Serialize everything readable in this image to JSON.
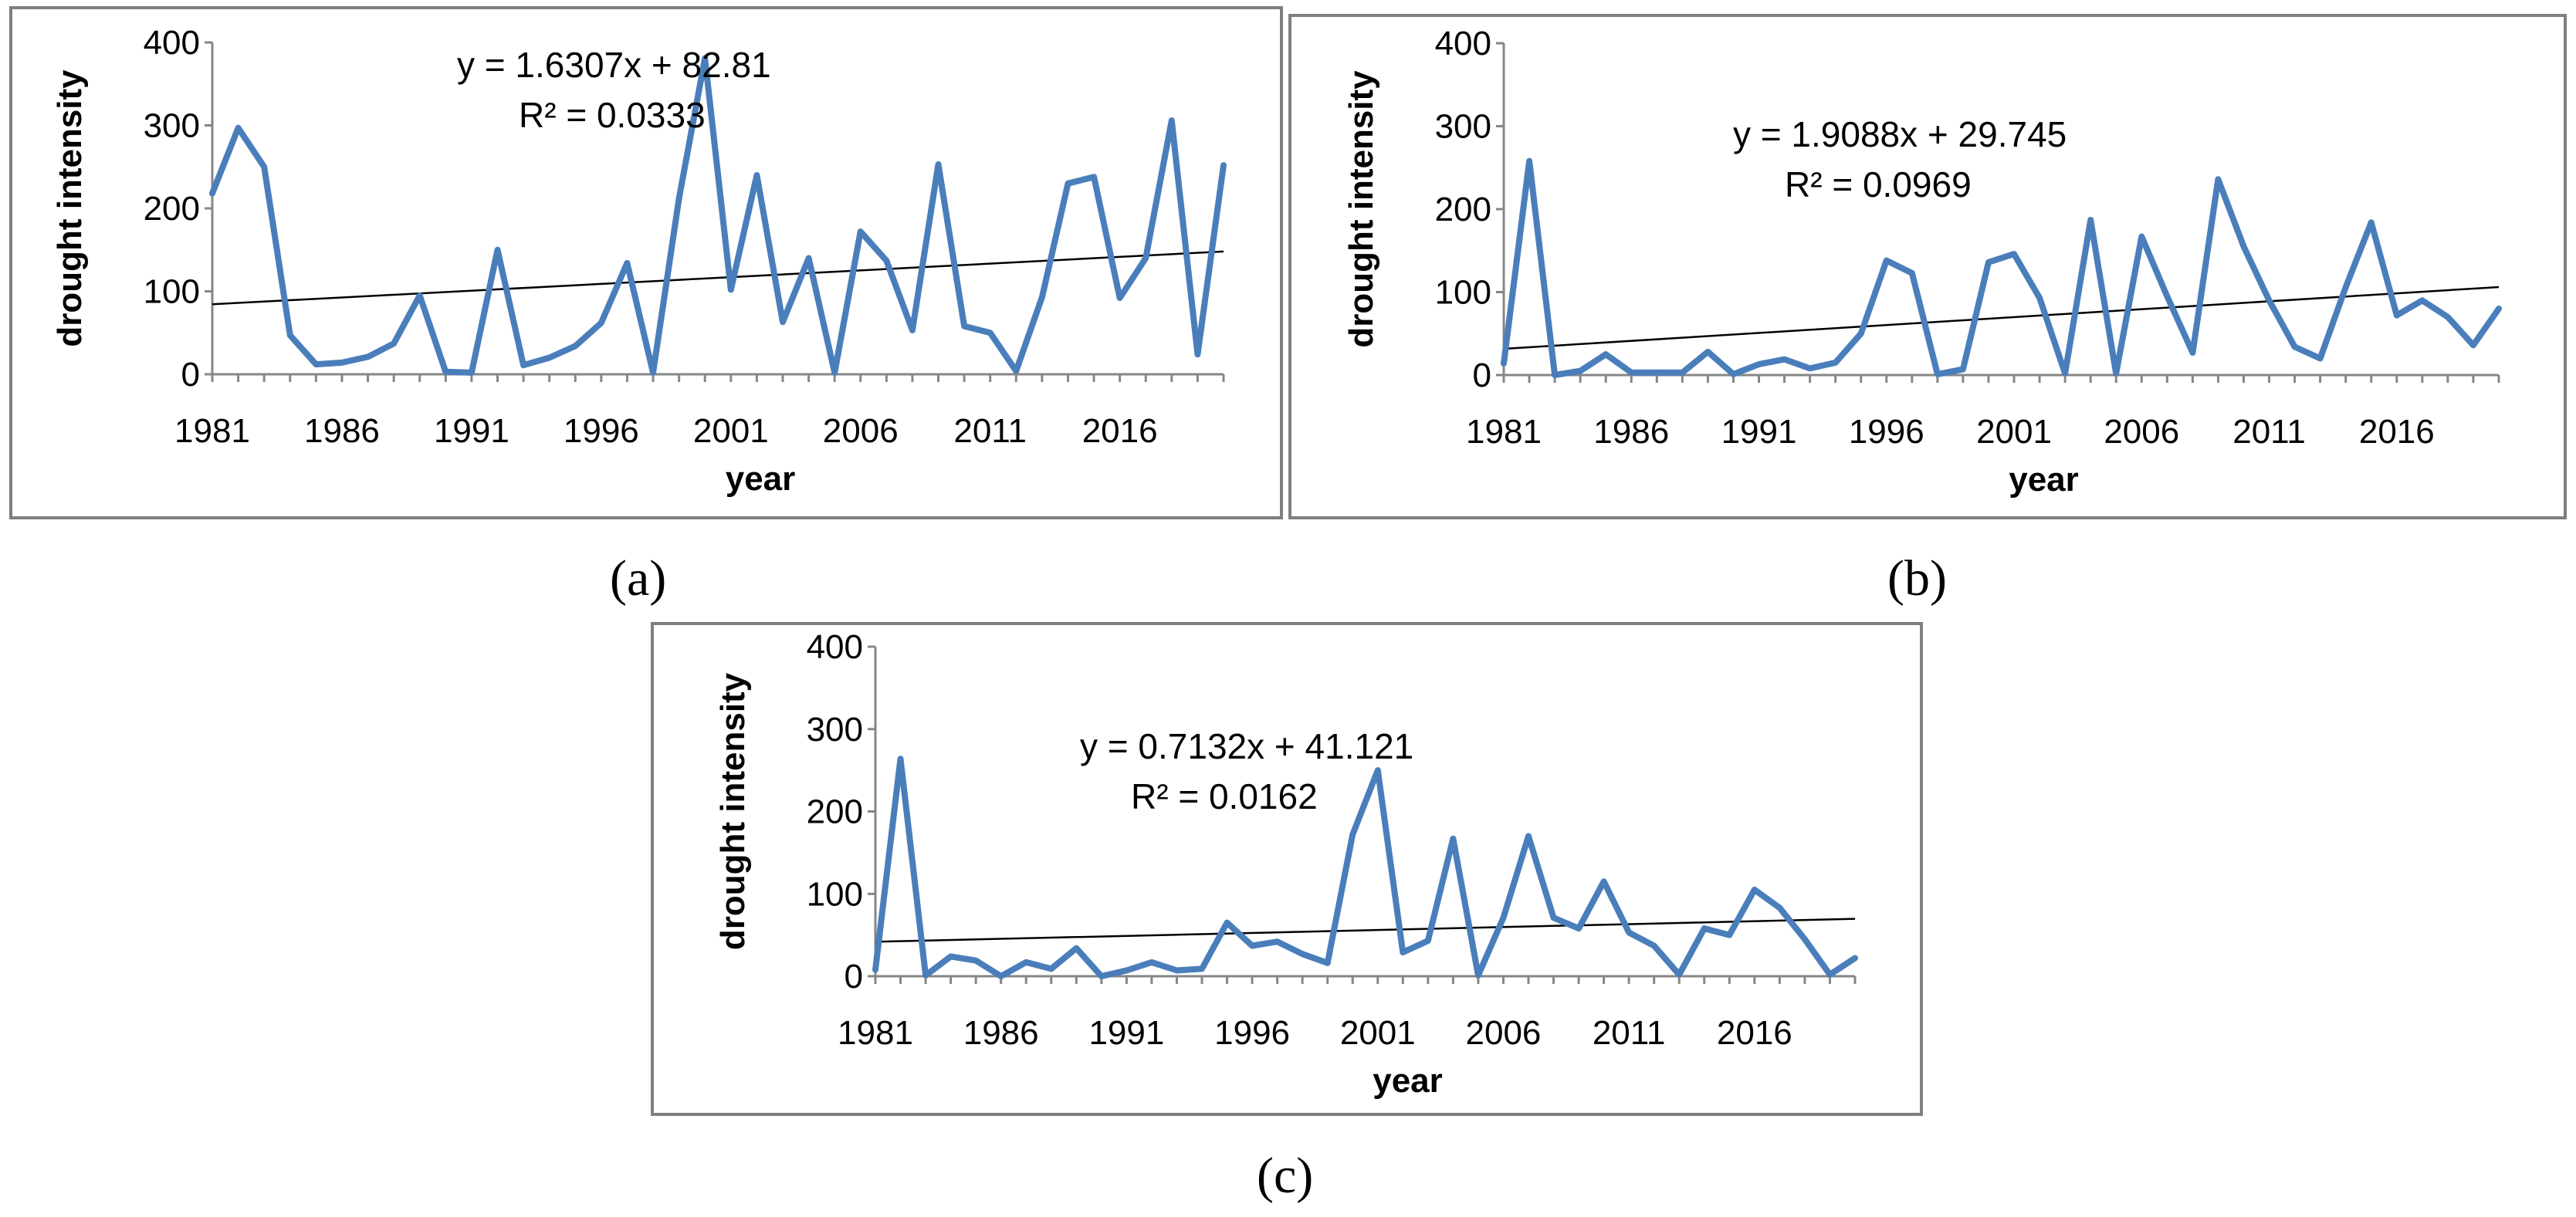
{
  "chart_data": [
    {
      "id": "a",
      "type": "line",
      "caption": "(a)",
      "xlabel": "year",
      "ylabel": "drought intensity",
      "ylim": [
        0,
        400
      ],
      "yticks": [
        0,
        100,
        200,
        300,
        400
      ],
      "xtick_labels": [
        "1981",
        "1986",
        "1991",
        "1996",
        "2001",
        "2006",
        "2011",
        "2016"
      ],
      "x": [
        1981,
        1982,
        1983,
        1984,
        1985,
        1986,
        1987,
        1988,
        1989,
        1990,
        1991,
        1992,
        1993,
        1994,
        1995,
        1996,
        1997,
        1998,
        1999,
        2000,
        2001,
        2002,
        2003,
        2004,
        2005,
        2006,
        2007,
        2008,
        2009,
        2010,
        2011,
        2012,
        2013,
        2014,
        2015,
        2016,
        2017,
        2018,
        2019,
        2020
      ],
      "series": [
        {
          "name": "drought intensity",
          "color": "#4a7ebb",
          "values": [
            218,
            297,
            250,
            47,
            12,
            14,
            21,
            37,
            95,
            3,
            2,
            150,
            11,
            20,
            34,
            62,
            134,
            2,
            212,
            381,
            102,
            240,
            63,
            140,
            2,
            172,
            137,
            53,
            253,
            58,
            50,
            4,
            93,
            230,
            238,
            92,
            140,
            306,
            24,
            252
          ]
        }
      ],
      "trendline": {
        "slope": 1.6307,
        "intercept": 82.81,
        "equation": "y = 1.6307x + 82.81",
        "r2": "R² = 0.0333"
      }
    },
    {
      "id": "b",
      "type": "line",
      "caption": "(b)",
      "xlabel": "year",
      "ylabel": "drought intensity",
      "ylim": [
        0,
        400
      ],
      "yticks": [
        0,
        100,
        200,
        300,
        400
      ],
      "xtick_labels": [
        "1981",
        "1986",
        "1991",
        "1996",
        "2001",
        "2006",
        "2011",
        "2016"
      ],
      "x": [
        1981,
        1982,
        1983,
        1984,
        1985,
        1986,
        1987,
        1988,
        1989,
        1990,
        1991,
        1992,
        1993,
        1994,
        1995,
        1996,
        1997,
        1998,
        1999,
        2000,
        2001,
        2002,
        2003,
        2004,
        2005,
        2006,
        2007,
        2008,
        2009,
        2010,
        2011,
        2012,
        2013,
        2014,
        2015,
        2016,
        2017,
        2018,
        2019,
        2020
      ],
      "series": [
        {
          "name": "drought intensity",
          "color": "#4a7ebb",
          "values": [
            14,
            258,
            0,
            5,
            25,
            3,
            3,
            3,
            28,
            1,
            13,
            19,
            8,
            15,
            50,
            138,
            123,
            1,
            7,
            136,
            146,
            93,
            2,
            187,
            2,
            167,
            95,
            27,
            236,
            155,
            90,
            34,
            20,
            106,
            184,
            72,
            90,
            70,
            36,
            80
          ]
        }
      ],
      "trendline": {
        "slope": 1.9088,
        "intercept": 29.745,
        "equation": "y = 1.9088x + 29.745",
        "r2": "R² = 0.0969"
      }
    },
    {
      "id": "c",
      "type": "line",
      "caption": "(c)",
      "xlabel": "year",
      "ylabel": "drought intensity",
      "ylim": [
        0,
        400
      ],
      "yticks": [
        0,
        100,
        200,
        300,
        400
      ],
      "xtick_labels": [
        "1981",
        "1986",
        "1991",
        "1996",
        "2001",
        "2006",
        "2011",
        "2016"
      ],
      "x": [
        1981,
        1982,
        1983,
        1984,
        1985,
        1986,
        1987,
        1988,
        1989,
        1990,
        1991,
        1992,
        1993,
        1994,
        1995,
        1996,
        1997,
        1998,
        1999,
        2000,
        2001,
        2002,
        2003,
        2004,
        2005,
        2006,
        2007,
        2008,
        2009,
        2010,
        2011,
        2012,
        2013,
        2014,
        2015,
        2016,
        2017,
        2018,
        2019,
        2020
      ],
      "series": [
        {
          "name": "drought intensity",
          "color": "#4a7ebb",
          "values": [
            8,
            264,
            1,
            24,
            19,
            0,
            17,
            9,
            34,
            0,
            7,
            17,
            7,
            9,
            65,
            37,
            42,
            27,
            16,
            172,
            250,
            29,
            43,
            167,
            1,
            71,
            170,
            71,
            58,
            115,
            53,
            37,
            2,
            58,
            50,
            105,
            83,
            45,
            2,
            22
          ]
        }
      ],
      "trendline": {
        "slope": 0.7132,
        "intercept": 41.121,
        "equation": "y = 0.7132x + 41.121",
        "r2": "R² = 0.0162"
      }
    }
  ]
}
